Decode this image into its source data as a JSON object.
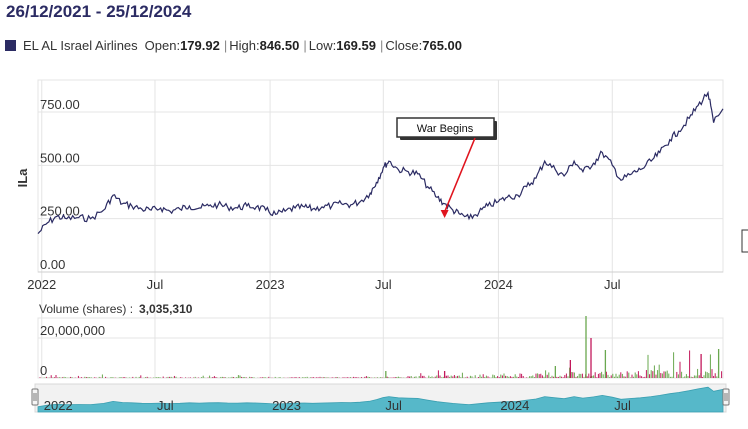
{
  "header": {
    "range": "26/12/2021 - 25/12/2024",
    "instrument": "EL AL Israel Airlines",
    "open_label": "Open:",
    "open": "179.92",
    "high_label": "High:",
    "high": "846.50",
    "low_label": "Low:",
    "low": "169.59",
    "close_label": "Close:",
    "close": "765.00",
    "colors": {
      "series": "#2b2b63",
      "annotation_arrow": "#e0141e",
      "volume_up": "#6aa84f",
      "volume_down": "#c2185b",
      "navigator": "#56b8c9"
    }
  },
  "volume": {
    "label": "Volume (shares) :",
    "value": "3,035,310"
  },
  "chart_data": [
    {
      "type": "line",
      "ylabel": "ILa",
      "yticks": [
        "0.00",
        "250.00",
        "500.00",
        "750.00"
      ],
      "ylim": [
        0,
        900
      ],
      "xticks": [
        "2022",
        "Jul",
        "2023",
        "Jul",
        "2024",
        "Jul"
      ],
      "xtick_dates": [
        "2022-01-01",
        "2022-07-01",
        "2023-01-01",
        "2023-07-01",
        "2024-01-01",
        "2024-07-01"
      ],
      "xlim": [
        "2021-12-26",
        "2024-12-25"
      ],
      "grid": true,
      "annotation": {
        "text": "War Begins",
        "date": "2023-10-07"
      },
      "series": [
        {
          "x": [
            "2021-12-26",
            "2022-01-10",
            "2022-01-25",
            "2022-02-10",
            "2022-03-01",
            "2022-03-20",
            "2022-04-10",
            "2022-04-25",
            "2022-05-10",
            "2022-05-25",
            "2022-06-10",
            "2022-06-25",
            "2022-07-10",
            "2022-07-25",
            "2022-08-10",
            "2022-08-25",
            "2022-09-10",
            "2022-09-25",
            "2022-10-10",
            "2022-10-25",
            "2022-11-10",
            "2022-11-25",
            "2022-12-10",
            "2022-12-25",
            "2023-01-10",
            "2023-01-25",
            "2023-02-10",
            "2023-02-25",
            "2023-03-10",
            "2023-03-25",
            "2023-04-10",
            "2023-04-25",
            "2023-05-10",
            "2023-05-25",
            "2023-06-10",
            "2023-06-20",
            "2023-07-01",
            "2023-07-10",
            "2023-07-25",
            "2023-08-10",
            "2023-08-25",
            "2023-09-10",
            "2023-09-25",
            "2023-10-07",
            "2023-10-20",
            "2023-11-01",
            "2023-11-15",
            "2023-12-01",
            "2023-12-15",
            "2024-01-01",
            "2024-01-15",
            "2024-02-01",
            "2024-02-15",
            "2024-03-01",
            "2024-03-15",
            "2024-04-01",
            "2024-04-15",
            "2024-05-01",
            "2024-05-15",
            "2024-06-01",
            "2024-06-15",
            "2024-07-01",
            "2024-07-15",
            "2024-08-01",
            "2024-08-15",
            "2024-09-01",
            "2024-09-15",
            "2024-10-01",
            "2024-10-15",
            "2024-11-01",
            "2024-11-15",
            "2024-12-01",
            "2024-12-10",
            "2024-12-25"
          ],
          "values": [
            180,
            230,
            260,
            250,
            255,
            250,
            290,
            360,
            320,
            310,
            295,
            290,
            300,
            285,
            295,
            310,
            300,
            310,
            315,
            305,
            300,
            310,
            305,
            290,
            270,
            285,
            300,
            305,
            295,
            305,
            310,
            320,
            315,
            330,
            370,
            420,
            490,
            520,
            480,
            470,
            460,
            400,
            350,
            320,
            290,
            270,
            250,
            280,
            310,
            330,
            350,
            360,
            400,
            440,
            520,
            480,
            450,
            520,
            470,
            510,
            560,
            500,
            430,
            460,
            480,
            520,
            560,
            620,
            660,
            720,
            780,
            840,
            700,
            765
          ]
        }
      ]
    },
    {
      "type": "bar",
      "title": "Volume (shares)",
      "yticks": [
        "0",
        "20,000,000"
      ],
      "ylim": [
        0,
        30000000
      ],
      "spikes": [
        {
          "x": "2023-07-05",
          "value": 3500000
        },
        {
          "x": "2023-10-07",
          "value": 3500000
        },
        {
          "x": "2024-04-01",
          "value": 6000000
        },
        {
          "x": "2024-04-25",
          "value": 9000000
        },
        {
          "x": "2024-05-20",
          "value": 31000000
        },
        {
          "x": "2024-05-28",
          "value": 20000000
        },
        {
          "x": "2024-06-20",
          "value": 14000000
        },
        {
          "x": "2024-11-20",
          "value": 12000000
        },
        {
          "x": "2024-12-18",
          "value": 14500000
        }
      ]
    }
  ]
}
